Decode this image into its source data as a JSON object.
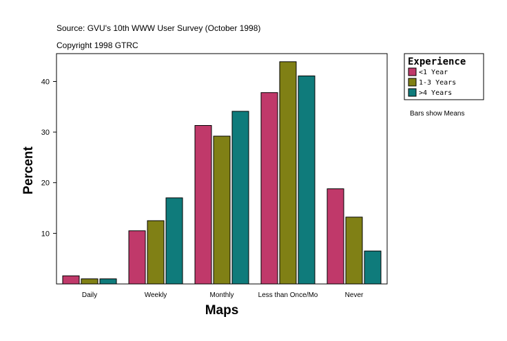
{
  "header": {
    "source": "Source: GVU's 10th WWW User Survey (October 1998)",
    "copyright": "Copyright 1998 GTRC"
  },
  "note": "Bars show Means",
  "colors": {
    "lt1": "#c0396a",
    "y1to3": "#808015",
    "gt4": "#0f7b7b"
  },
  "chart_data": {
    "type": "bar",
    "title": "",
    "xlabel": "Maps",
    "ylabel": "Percent",
    "categories": [
      "Daily",
      "Weekly",
      "Monthly",
      "Less than Once/Mo",
      "Never"
    ],
    "series": [
      {
        "name": "<1 Year",
        "color": "#c0396a",
        "values": [
          1.6,
          10.5,
          31.3,
          37.8,
          18.8
        ]
      },
      {
        "name": "1-3 Years",
        "color": "#808015",
        "values": [
          1.0,
          12.5,
          29.2,
          43.9,
          13.2
        ]
      },
      {
        "name": ">4 Years",
        "color": "#0f7b7b",
        "values": [
          1.0,
          17.0,
          34.1,
          41.1,
          6.5
        ]
      }
    ],
    "yticks": [
      10,
      20,
      30,
      40
    ],
    "ylim": [
      0,
      45.5
    ],
    "grid": false,
    "legend": {
      "title": "Experience",
      "position": "right-top"
    }
  }
}
